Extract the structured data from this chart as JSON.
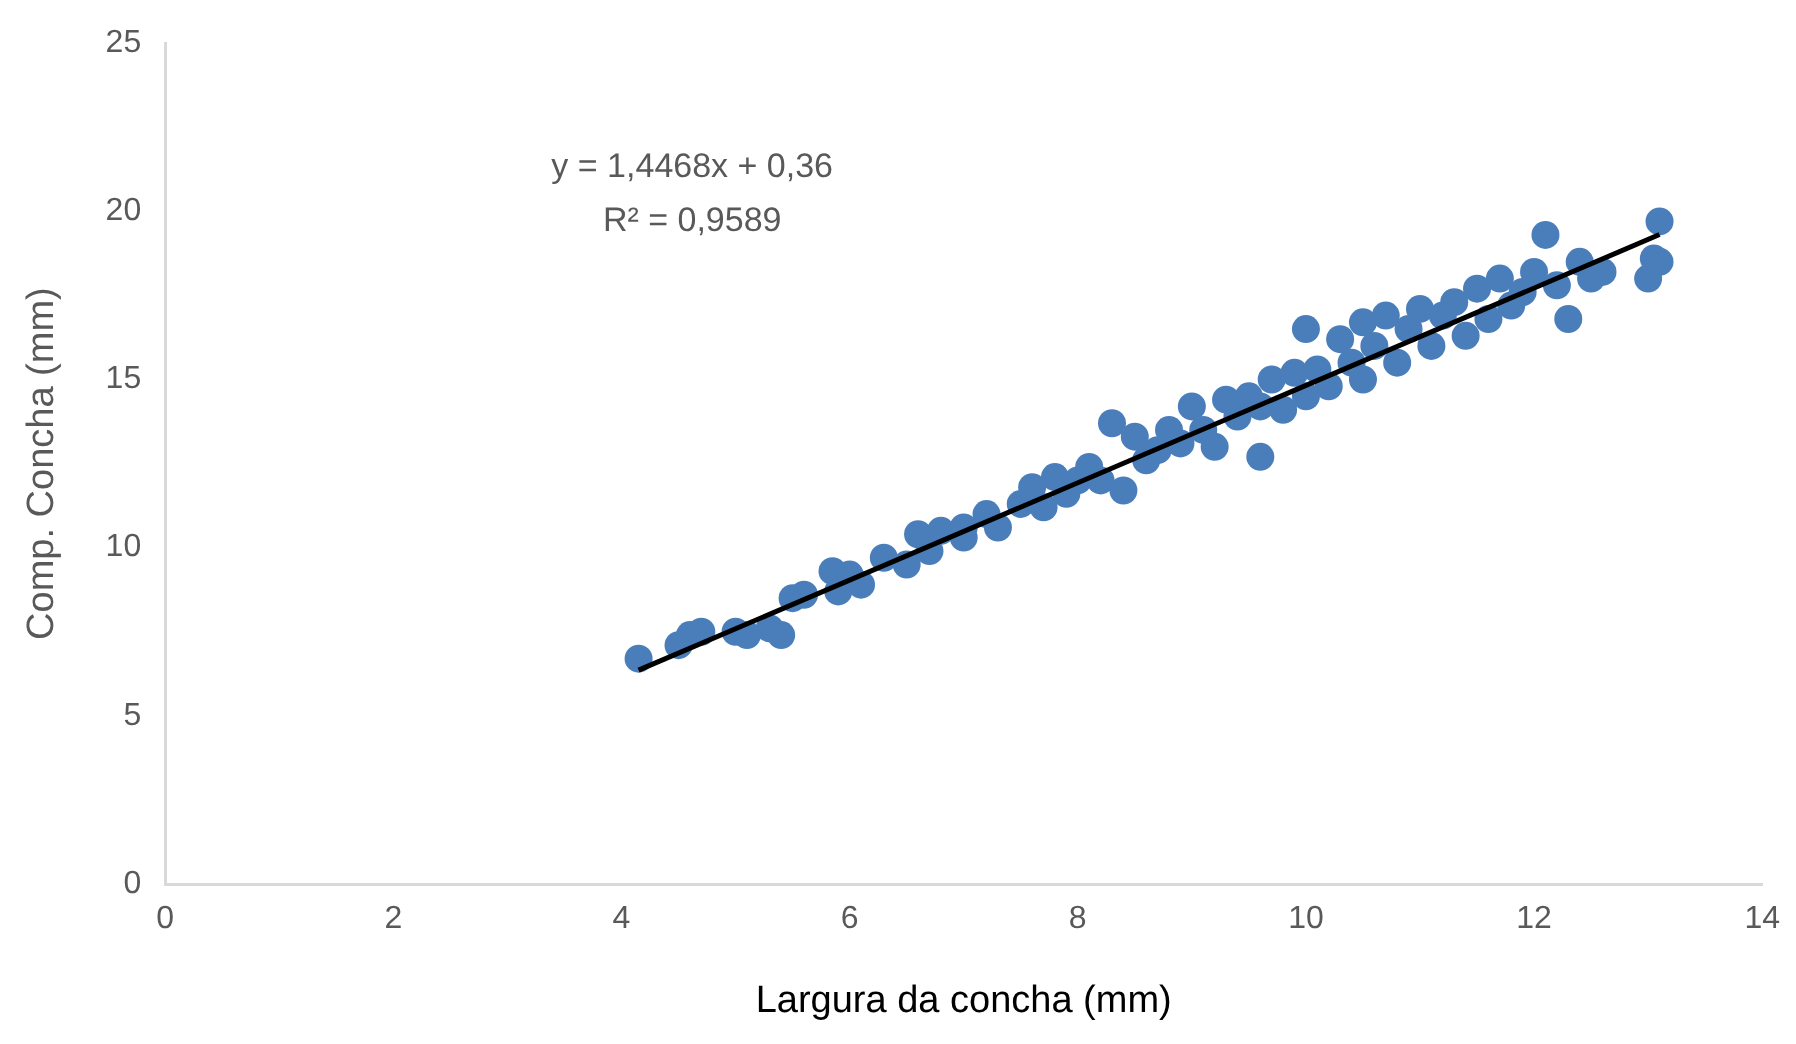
{
  "chart_data": {
    "type": "scatter",
    "xlabel": "Largura da concha (mm)",
    "ylabel": "Comp. Concha (mm)",
    "annotations": [
      "y = 1,4468x + 0,36",
      "R² = 0,9589"
    ],
    "xlim": [
      0,
      14
    ],
    "xticks": [
      0,
      2,
      4,
      6,
      8,
      10,
      12,
      14
    ],
    "ylim": [
      0,
      25
    ],
    "yticks": [
      0,
      5,
      10,
      15,
      20,
      25
    ],
    "grid": false,
    "legend": false,
    "series": [
      {
        "marker": "circle",
        "color": "#4a7ebb",
        "x": [
          4.15,
          4.5,
          4.6,
          4.7,
          5.0,
          5.1,
          5.3,
          5.4,
          5.5,
          5.6,
          5.9,
          5.85,
          6.0,
          6.1,
          6.3,
          6.5,
          6.6,
          6.7,
          6.8,
          7.0,
          7.0,
          7.2,
          7.3,
          7.5,
          7.6,
          7.7,
          7.8,
          7.9,
          8.0,
          8.1,
          8.2,
          8.3,
          8.4,
          8.5,
          8.6,
          8.7,
          8.8,
          8.9,
          9.0,
          9.1,
          9.2,
          9.3,
          9.4,
          9.5,
          9.6,
          9.6,
          9.7,
          9.8,
          9.9,
          10.0,
          10.0,
          10.1,
          10.2,
          10.3,
          10.4,
          10.5,
          10.5,
          10.6,
          10.7,
          10.8,
          10.9,
          11.0,
          11.1,
          11.2,
          11.3,
          11.4,
          11.5,
          11.6,
          11.7,
          11.8,
          11.9,
          12.0,
          12.1,
          12.2,
          12.3,
          12.4,
          12.5,
          12.6,
          13.0,
          13.05,
          13.1,
          13.1
        ],
        "values": [
          6.7,
          7.1,
          7.4,
          7.5,
          7.5,
          7.4,
          7.6,
          7.4,
          8.5,
          8.6,
          8.7,
          9.3,
          9.2,
          8.9,
          9.7,
          9.5,
          10.4,
          9.9,
          10.5,
          10.6,
          10.3,
          11.0,
          10.6,
          11.3,
          11.8,
          11.2,
          12.1,
          11.6,
          12.0,
          12.4,
          12.0,
          13.7,
          11.7,
          13.3,
          12.6,
          12.9,
          13.5,
          13.1,
          14.2,
          13.5,
          13.0,
          14.4,
          13.9,
          14.5,
          12.7,
          14.2,
          15.0,
          14.1,
          15.2,
          14.5,
          16.5,
          15.3,
          14.8,
          16.2,
          15.5,
          16.7,
          15.0,
          16.0,
          16.9,
          15.5,
          16.5,
          17.1,
          16.0,
          16.9,
          17.3,
          16.3,
          17.7,
          16.8,
          18.0,
          17.2,
          17.6,
          18.2,
          19.3,
          17.8,
          16.8,
          18.5,
          18.0,
          18.2,
          18.0,
          18.6,
          19.7,
          18.5
        ]
      },
      {
        "type": "line",
        "marker": "none",
        "color": "#000000",
        "x": [
          4.15,
          13.1
        ],
        "values": [
          6.36,
          19.31
        ]
      }
    ]
  }
}
